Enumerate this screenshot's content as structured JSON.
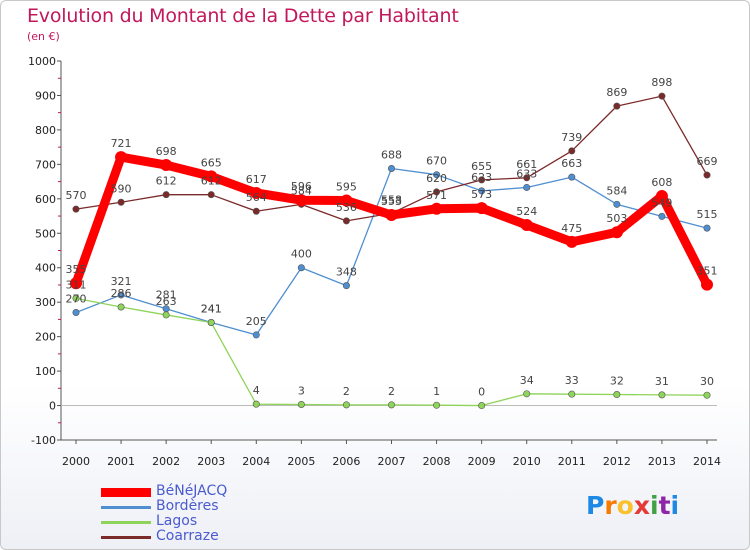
{
  "title": "Evolution du Montant de la Dette par Habitant",
  "subtitle": "(en €)",
  "logo": {
    "text": "Proxiti",
    "letters": [
      "P",
      "r",
      "o",
      "x",
      "i",
      "t",
      "i"
    ],
    "colors": [
      "#1e88e5",
      "#f57c00",
      "#fbc02d",
      "#e53935",
      "#43a047",
      "#8e24aa",
      "#1e88e5"
    ]
  },
  "chart_data": {
    "type": "line",
    "title": "Evolution du Montant de la Dette par Habitant",
    "ylabel": "(en €)",
    "xlabel": "",
    "x": [
      "2000",
      "2001",
      "2002",
      "2003",
      "2004",
      "2005",
      "2006",
      "2007",
      "2008",
      "2009",
      "2010",
      "2011",
      "2012",
      "2013",
      "2014"
    ],
    "ylim": [
      -100,
      1000
    ],
    "yticks": [
      "-100",
      "0",
      "100",
      "200",
      "300",
      "400",
      "500",
      "600",
      "700",
      "800",
      "900",
      "1000"
    ],
    "grid": false,
    "legend_position": "bottom-left",
    "series": [
      {
        "name": "BéNéJACQ",
        "color": "#ff0000",
        "emphasis": true,
        "values": [
          355,
          721,
          698,
          665,
          617,
          596,
          595,
          553,
          571,
          573,
          524,
          475,
          503,
          608,
          351
        ],
        "labels": [
          "355",
          "721",
          "698",
          "665",
          "617",
          "596",
          "595",
          "553",
          "571",
          "573",
          "524",
          "475",
          "503",
          "608",
          "351"
        ]
      },
      {
        "name": "Bordères",
        "color": "#4f8fd1",
        "emphasis": false,
        "values": [
          270,
          321,
          281,
          241,
          205,
          400,
          348,
          688,
          670,
          623,
          633,
          663,
          584,
          549,
          515
        ],
        "labels": [
          "270",
          "321",
          "281",
          "241",
          "205",
          "400",
          "348",
          "688",
          "670",
          "623",
          "633",
          "663",
          "584",
          "549",
          "515"
        ]
      },
      {
        "name": "Lagos",
        "color": "#8fd45a",
        "emphasis": false,
        "values": [
          311,
          286,
          263,
          241,
          4,
          3,
          2,
          2,
          1,
          0,
          34,
          33,
          32,
          31,
          30
        ],
        "labels": [
          "311",
          "286",
          "263",
          "241",
          "4",
          "3",
          "2",
          "2",
          "1",
          "0",
          "34",
          "33",
          "32",
          "31",
          "30"
        ]
      },
      {
        "name": "Coarraze",
        "color": "#7b2a2a",
        "emphasis": false,
        "values": [
          570,
          590,
          612,
          612,
          564,
          584,
          536,
          558,
          620,
          655,
          661,
          739,
          869,
          898,
          669
        ],
        "labels": [
          "570",
          "590",
          "612",
          "612",
          "564",
          "584",
          "536",
          "558",
          "620",
          "655",
          "661",
          "739",
          "869",
          "898",
          "669"
        ]
      }
    ]
  }
}
